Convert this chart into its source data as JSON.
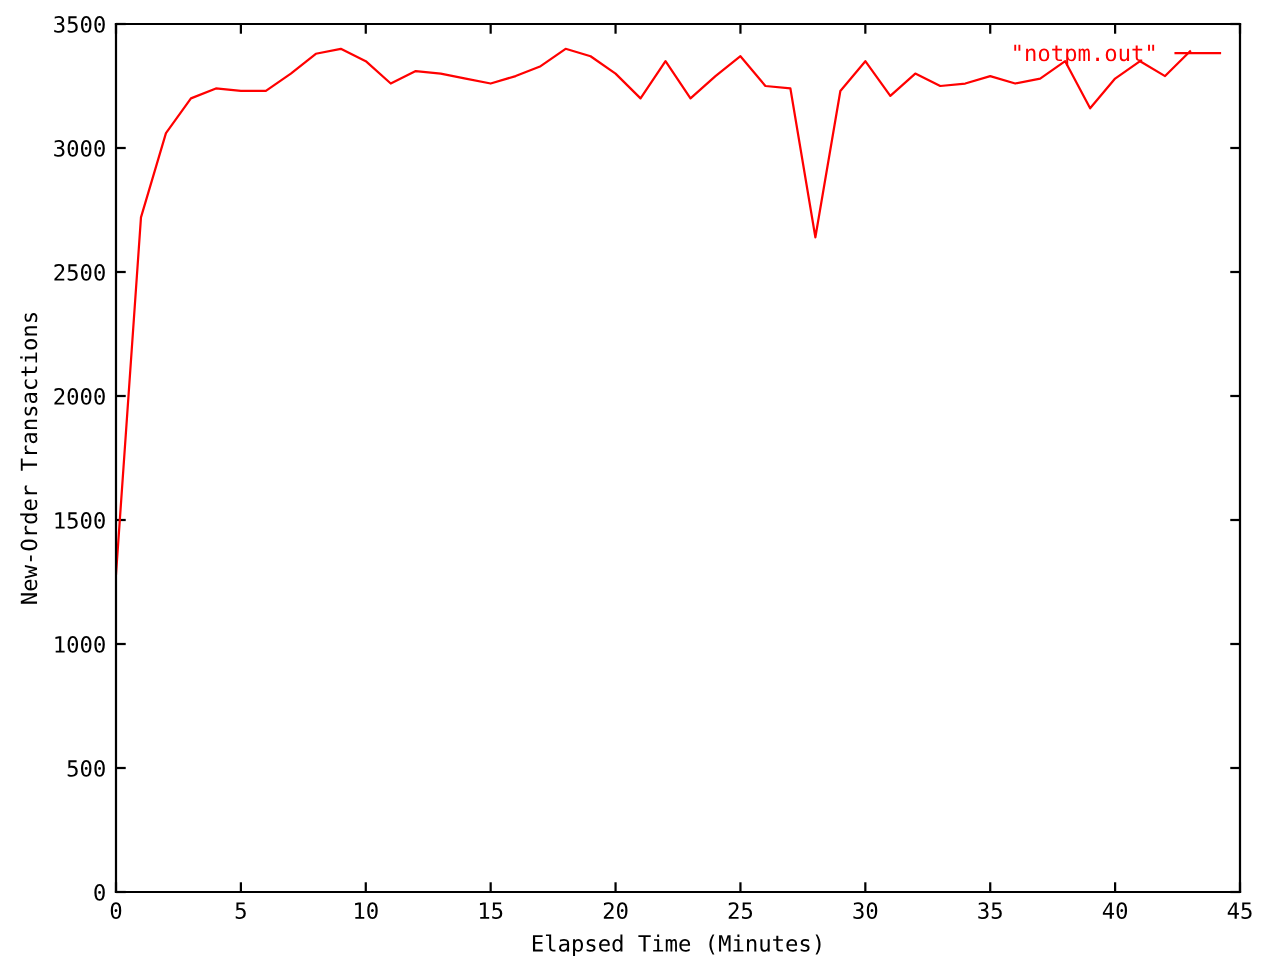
{
  "chart_data": {
    "type": "line",
    "xlabel": "Elapsed Time (Minutes)",
    "ylabel": "New-Order Transactions",
    "x": [
      0,
      1,
      2,
      3,
      4,
      5,
      6,
      7,
      8,
      9,
      10,
      11,
      12,
      13,
      14,
      15,
      16,
      17,
      18,
      19,
      20,
      21,
      22,
      23,
      24,
      25,
      26,
      27,
      28,
      29,
      30,
      31,
      32,
      33,
      34,
      35,
      36,
      37,
      38,
      39,
      40,
      41,
      42,
      43
    ],
    "series": [
      {
        "name": "\"notpm.out\"",
        "color": "#ff0000",
        "values": [
          1280,
          2720,
          3060,
          3200,
          3240,
          3230,
          3230,
          3300,
          3380,
          3400,
          3350,
          3260,
          3310,
          3300,
          3280,
          3260,
          3290,
          3330,
          3400,
          3370,
          3300,
          3200,
          3350,
          3200,
          3290,
          3370,
          3250,
          3240,
          2640,
          3230,
          3350,
          3210,
          3300,
          3250,
          3260,
          3290,
          3260,
          3280,
          3350,
          3160,
          3280,
          3350,
          3290,
          3390
        ]
      }
    ],
    "xlim": [
      0,
      45
    ],
    "xticks": [
      0,
      5,
      10,
      15,
      20,
      25,
      30,
      35,
      40,
      45
    ],
    "ylim": [
      0,
      3500
    ],
    "yticks": [
      0,
      500,
      1000,
      1500,
      2000,
      2500,
      3000,
      3500
    ],
    "legend": "top right",
    "grid": false
  }
}
